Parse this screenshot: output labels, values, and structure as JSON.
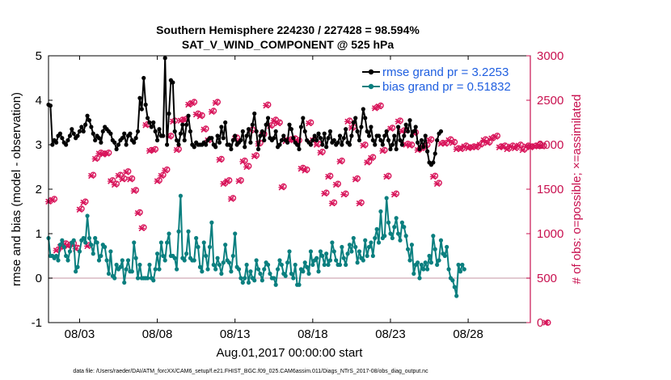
{
  "chart_data": {
    "type": "line",
    "title": "Southern Hemisphere 224230 / 227428 = 98.594%",
    "subtitle": "SAT_V_WIND_COMPONENT @ 525 hPa",
    "xlabel": "Aug.01,2017 00:00:00 start",
    "ylabel_left": "rmse and bias (model - observation)",
    "ylabel_right": "# of obs: o=possible; ×=assimilated",
    "footnote": "data file: /Users/raeder/DAI/ATM_forcXX/CAM6_setup/f.e21.FHIST_BGC.f09_025.CAM6assim.011/Diags_NTrS_2017-08/obs_diag_output.nc",
    "xlim": [
      1,
      32
    ],
    "ylim_left": [
      -1,
      5
    ],
    "ylim_right": [
      0,
      3000
    ],
    "x_ticks": [
      3,
      8,
      13,
      18,
      23,
      28
    ],
    "x_tick_labels": [
      "08/03",
      "08/08",
      "08/13",
      "08/18",
      "08/23",
      "08/28"
    ],
    "y_ticks_left": [
      -1,
      0,
      1,
      2,
      3,
      4,
      5
    ],
    "y_ticks_right": [
      0,
      500,
      1000,
      1500,
      2000,
      2500,
      3000
    ],
    "legend_position": "top-right",
    "colors": {
      "rmse": "#000000",
      "bias": "#0a7f7f",
      "obs": "#d8145a",
      "zero_line": "#d9b8c2",
      "right_axis": "#c8104f",
      "legend_text": "#1f5fe0"
    },
    "series": [
      {
        "name": "rmse grand pr = 3.2253",
        "axis": "left",
        "x_start": 1.0,
        "x_step": 0.125,
        "values": [
          3.9,
          3.88,
          3.0,
          3.1,
          3.05,
          3.2,
          3.25,
          3.15,
          3.05,
          3.0,
          3.1,
          3.2,
          3.35,
          3.25,
          3.15,
          3.2,
          3.3,
          3.4,
          3.3,
          3.45,
          3.65,
          3.55,
          3.4,
          3.25,
          3.1,
          3.2,
          3.15,
          3.05,
          3.3,
          3.4,
          3.35,
          3.3,
          3.25,
          3.1,
          3.05,
          2.9,
          3.0,
          3.1,
          3.15,
          3.25,
          3.0,
          3.2,
          3.25,
          3.1,
          3.05,
          3.15,
          3.3,
          4.05,
          3.8,
          4.5,
          3.9,
          3.6,
          3.5,
          3.4,
          3.5,
          3.3,
          3.1,
          3.35,
          3.2,
          3.2,
          4.95,
          3.0,
          3.7,
          4.45,
          4.4,
          3.3,
          3.1,
          3.0,
          3.25,
          3.45,
          3.1,
          3.45,
          3.65,
          3.3,
          3.0,
          2.95,
          3.05,
          3.0,
          3.0,
          3.0,
          3.05,
          3.0,
          3.1,
          3.15,
          3.15,
          3.0,
          2.95,
          3.2,
          3.05,
          3.4,
          3.15,
          3.5,
          3.0,
          3.0,
          2.9,
          3.1,
          3.2,
          3.0,
          3.05,
          3.1,
          3.3,
          2.95,
          3.2,
          3.35,
          3.05,
          3.45,
          3.7,
          3.3,
          2.9,
          3.2,
          3.3,
          3.1,
          3.45,
          3.6,
          3.15,
          3.1,
          3.15,
          3.3,
          2.95,
          3.0,
          3.1,
          3.2,
          3.1,
          3.05,
          3.45,
          3.35,
          3.15,
          3.05,
          3.0,
          2.9,
          3.4,
          3.6,
          3.3,
          3.1,
          3.05,
          3.0,
          3.1,
          3.2,
          3.1,
          3.25,
          3.15,
          3.0,
          3.25,
          2.95,
          3.15,
          3.3,
          3.05,
          3.1,
          3.0,
          3.05,
          3.2,
          3.0,
          3.15,
          3.35,
          3.05,
          3.0,
          3.2,
          3.5,
          3.6,
          3.3,
          3.1,
          3.4,
          3.8,
          3.6,
          3.3,
          3.2,
          3.4,
          3.1,
          3.0,
          3.2,
          3.2,
          3.1,
          3.0,
          3.2,
          3.3,
          3.1,
          2.9,
          3.0,
          3.2,
          2.9,
          3.4,
          3.1,
          3.0,
          3.2,
          3.45,
          3.3,
          3.55,
          3.2,
          3.3,
          3.4,
          3.05,
          2.9,
          3.1,
          2.95,
          3.2,
          2.85,
          2.6,
          2.55,
          2.6,
          2.8,
          3.1,
          3.25,
          3.3
        ]
      },
      {
        "name": "bias grand pr = 0.51832",
        "axis": "left",
        "x_start": 1.0,
        "x_step": 0.125,
        "values": [
          0.9,
          0.5,
          0.5,
          0.45,
          0.5,
          0.4,
          0.75,
          0.85,
          0.7,
          0.5,
          0.4,
          0.6,
          0.8,
          0.85,
          0.15,
          0.25,
          0.6,
          0.85,
          0.9,
          0.8,
          1.4,
          0.9,
          0.75,
          0.55,
          0.9,
          0.8,
          0.4,
          0.5,
          0.75,
          0.7,
          0.4,
          0.1,
          0.6,
          0.05,
          0.0,
          0.3,
          0.2,
          0.25,
          0.4,
          -0.1,
          0.2,
          0.4,
          0.15,
          0.15,
          0.8,
          0.45,
          0.0,
          0.3,
          0.0,
          0.0,
          0.0,
          0.0,
          0.3,
          0.0,
          -0.05,
          0.2,
          0.55,
          0.2,
          0.8,
          0.5,
          0.4,
          0.8,
          1.0,
          0.5,
          0.5,
          0.45,
          0.2,
          1.05,
          1.85,
          0.45,
          0.4,
          0.55,
          1.05,
          0.45,
          0.4,
          0.4,
          0.9,
          0.7,
          0.25,
          0.15,
          0.8,
          0.5,
          0.2,
          0.7,
          1.25,
          0.3,
          0.2,
          0.45,
          0.3,
          0.1,
          0.35,
          0.75,
          0.4,
          0.35,
          0.15,
          0.5,
          1.0,
          0.25,
          0.2,
          0.0,
          -0.1,
          0.0,
          0.3,
          -0.1,
          0.15,
          0.0,
          -0.05,
          0.4,
          0.2,
          0.1,
          -0.05,
          0.2,
          0.35,
          0.3,
          0.1,
          0.0,
          0.0,
          -0.15,
          0.2,
          0.4,
          0.3,
          0.1,
          0.05,
          0.35,
          0.6,
          0.1,
          0.0,
          0.3,
          -0.15,
          -0.15,
          0.2,
          0.15,
          0.35,
          0.25,
          0.1,
          0.6,
          0.3,
          0.4,
          0.45,
          0.15,
          0.6,
          0.5,
          0.3,
          0.55,
          0.3,
          0.4,
          0.8,
          0.6,
          0.4,
          0.3,
          0.3,
          0.7,
          0.45,
          0.3,
          0.55,
          0.75,
          0.6,
          0.9,
          0.7,
          0.35,
          0.6,
          0.45,
          0.4,
          0.85,
          0.5,
          0.7,
          0.8,
          0.5,
          0.9,
          1.1,
          0.8,
          1.5,
          0.9,
          0.95,
          1.8,
          1.25,
          1.0,
          0.9,
          1.15,
          1.35,
          1.0,
          0.85,
          1.25,
          1.15,
          0.95,
          0.65,
          0.4,
          0.75,
          0.1,
          0.3,
          0.35,
          0.0,
          0.3,
          0.2,
          0.35,
          0.2,
          0.5,
          0.35,
          0.95,
          0.65,
          0.3,
          0.4,
          0.85,
          0.55,
          0.5,
          0.7,
          0.2,
          0.0,
          -0.05,
          -0.2,
          -0.4,
          0.3,
          0.15,
          0.3,
          0.2
        ]
      },
      {
        "name": "obs possible",
        "axis": "right",
        "marker": "circle",
        "x_start": 1.125,
        "x_step": 0.25,
        "values": [
          1370,
          1390,
          820,
          860,
          890,
          870,
          890,
          840,
          1280,
          1360,
          870,
          1660,
          1850,
          1910,
          1900,
          1910,
          1600,
          1560,
          1660,
          1620,
          1700,
          1620,
          1490,
          1240,
          1070,
          2230,
          1940,
          1950,
          1600,
          1660,
          1720,
          2100,
          2270,
          1950,
          2280,
          2290,
          2460,
          2480,
          2350,
          2330,
          2180,
          2060,
          2380,
          2480,
          1840,
          1570,
          1600,
          1400,
          2080,
          1600,
          1820,
          1760,
          2170,
          1880,
          2020,
          2120,
          2450,
          2220,
          2280,
          2250,
          1530,
          2050,
          2060,
          2070,
          2050,
          1740,
          1720,
          2250,
          2060,
          2010,
          1920,
          1460,
          1650,
          1350,
          1560,
          1820,
          1450,
          2270,
          2200,
          1620,
          1350,
          2000,
          1810,
          1860,
          2420,
          2440,
          1940,
          1650,
          2190,
          1450,
          2270,
          2160,
          2010,
          2000,
          2140,
          1950,
          1970,
          2000,
          2060,
          1650,
          1570,
          2020,
          2020,
          2060,
          2030,
          1960,
          1960,
          1990,
          1970,
          1980,
          1980,
          2010,
          2060,
          2030,
          2080,
          2100,
          1980,
          1990,
          1960,
          1990,
          1970,
          2000,
          1950,
          1990,
          1980,
          1990,
          2000,
          1990,
          0
        ]
      },
      {
        "name": "obs assimilated",
        "axis": "right",
        "marker": "x",
        "x_start": 1.0,
        "x_step": 0.25,
        "values": [
          1360,
          1380,
          810,
          850,
          880,
          860,
          880,
          830,
          1270,
          1350,
          860,
          1650,
          1840,
          1900,
          1890,
          1900,
          1590,
          1550,
          1650,
          1610,
          1690,
          1610,
          1480,
          1230,
          1060,
          2220,
          1930,
          1940,
          1590,
          1650,
          1710,
          2090,
          2260,
          1940,
          2270,
          2280,
          2450,
          2470,
          2340,
          2320,
          2170,
          2050,
          2370,
          2470,
          1830,
          1560,
          1590,
          1390,
          2070,
          1590,
          1810,
          1750,
          2160,
          1870,
          2010,
          2110,
          2440,
          2210,
          2270,
          2240,
          1520,
          2040,
          2050,
          2060,
          2040,
          1730,
          1710,
          2240,
          2050,
          2000,
          1910,
          1450,
          1640,
          1340,
          1550,
          1810,
          1440,
          2260,
          2190,
          1610,
          1340,
          1990,
          1800,
          1850,
          2410,
          2430,
          1930,
          1640,
          2180,
          1440,
          2260,
          2150,
          2000,
          1990,
          2130,
          1940,
          1960,
          1990,
          2050,
          1640,
          1560,
          2010,
          2010,
          2050,
          2020,
          1950,
          1950,
          1980,
          1960,
          1970,
          1970,
          2000,
          2050,
          2020,
          2070,
          2090,
          1970,
          1980,
          1950,
          1980,
          1960,
          1990,
          1940,
          1980,
          1970,
          1980,
          1990,
          1980,
          0
        ]
      }
    ]
  }
}
